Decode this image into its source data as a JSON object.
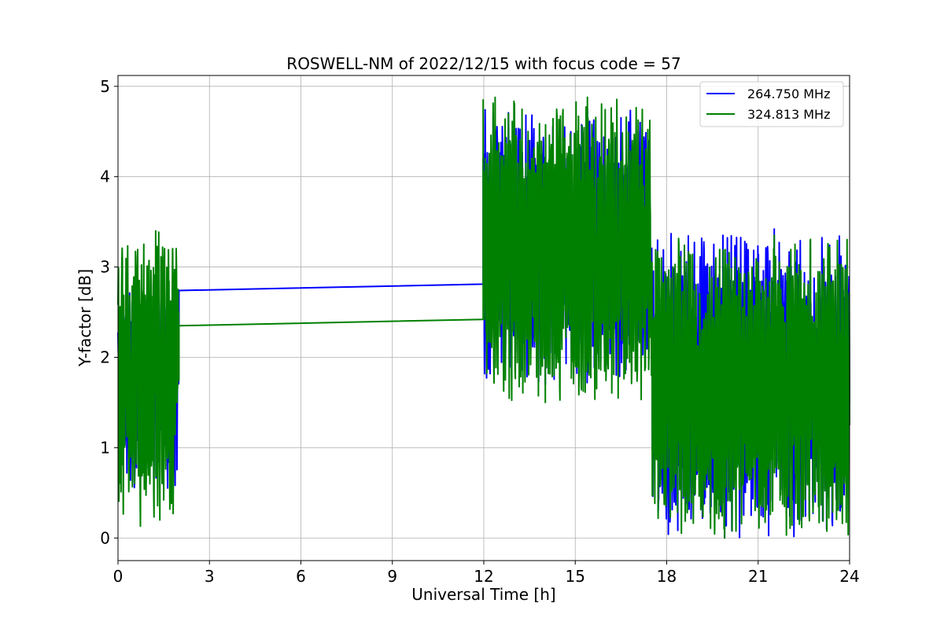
{
  "chart_data": {
    "type": "line",
    "title": "ROSWELL-NM of 2022/12/15 with focus code = 57",
    "xlabel": "Universal Time [h]",
    "ylabel": "Y-factor [dB]",
    "xlim": [
      0,
      24
    ],
    "ylim": [
      -0.25,
      5.12
    ],
    "xticks": [
      0,
      3,
      6,
      9,
      12,
      15,
      18,
      21,
      24
    ],
    "yticks": [
      0,
      1,
      2,
      3,
      4,
      5
    ],
    "grid": true,
    "legend_position": "top-right",
    "series": [
      {
        "name": "264.750 MHz",
        "color": "#0000ff",
        "segments": [
          {
            "x_range": [
              0,
              2.0
            ],
            "min": 0.55,
            "max": 2.85,
            "end_y": 2.15
          },
          {
            "bridge": [
              [
                2.0,
                2.15
              ],
              [
                2.0,
                2.74
              ],
              [
                11.98,
                2.81
              ],
              [
                11.98,
                4.2
              ]
            ]
          },
          {
            "x_range": [
              11.98,
              17.5
            ],
            "min": 1.7,
            "max": 4.75,
            "end_y": 2.3
          },
          {
            "x_range": [
              17.5,
              24
            ],
            "min": 0.0,
            "max": 3.42,
            "end_y": 1.5
          }
        ]
      },
      {
        "name": "324.813 MHz",
        "color": "#008000",
        "segments": [
          {
            "x_range": [
              0,
              2.0
            ],
            "min": 0.13,
            "max": 3.4,
            "end_y": 1.75
          },
          {
            "bridge": [
              [
                2.0,
                1.75
              ],
              [
                2.0,
                2.35
              ],
              [
                11.98,
                2.42
              ],
              [
                11.98,
                4.85
              ]
            ]
          },
          {
            "x_range": [
              11.98,
              17.5
            ],
            "min": 1.5,
            "max": 4.88,
            "end_y": 1.8
          },
          {
            "x_range": [
              17.5,
              24
            ],
            "min": 0.0,
            "max": 3.35,
            "end_y": 1.25
          }
        ]
      }
    ]
  }
}
